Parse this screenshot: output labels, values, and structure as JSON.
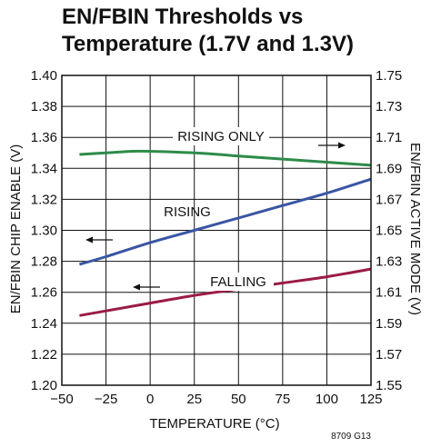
{
  "chart_data": {
    "type": "line",
    "title_line1": "EN/FBIN Thresholds vs",
    "title_line2": "Temperature (1.7V and 1.3V)",
    "xlabel": "TEMPERATURE (°C)",
    "ylabel_left": "EN/FBIN CHIP ENABLE (V)",
    "ylabel_right": "EN/FBIN ACTIVE MODE (V)",
    "xlim": [
      -50,
      125
    ],
    "ylim_left": [
      1.2,
      1.4
    ],
    "ylim_right": [
      1.55,
      1.75
    ],
    "x_ticks": [
      "−50",
      "−25",
      "0",
      "25",
      "50",
      "75",
      "100",
      "125"
    ],
    "y_ticks_left": [
      "1.20",
      "1.22",
      "1.24",
      "1.26",
      "1.28",
      "1.30",
      "1.32",
      "1.34",
      "1.36",
      "1.38",
      "1.40"
    ],
    "y_ticks_right": [
      "1.55",
      "1.57",
      "1.59",
      "1.61",
      "1.63",
      "1.65",
      "1.67",
      "1.69",
      "1.71",
      "1.73",
      "1.75"
    ],
    "grid": true,
    "series": [
      {
        "name": "RISING ONLY",
        "axis": "right",
        "color": "#2e8b4a",
        "x": [
          -40,
          -25,
          -10,
          0,
          25,
          50,
          75,
          100,
          125
        ],
        "y": [
          1.699,
          1.7,
          1.701,
          1.701,
          1.7,
          1.698,
          1.696,
          1.694,
          1.692
        ]
      },
      {
        "name": "RISING",
        "axis": "left",
        "color": "#3a55a4",
        "x": [
          -40,
          -25,
          0,
          25,
          50,
          75,
          100,
          125
        ],
        "y": [
          1.278,
          1.283,
          1.292,
          1.3,
          1.308,
          1.316,
          1.324,
          1.333
        ]
      },
      {
        "name": "FALLING",
        "axis": "left",
        "color": "#9b1b45",
        "x": [
          -40,
          -25,
          0,
          25,
          50,
          75,
          100,
          125
        ],
        "y": [
          1.245,
          1.248,
          1.253,
          1.258,
          1.262,
          1.266,
          1.27,
          1.275
        ]
      }
    ],
    "figure_id": "8709 G13"
  }
}
